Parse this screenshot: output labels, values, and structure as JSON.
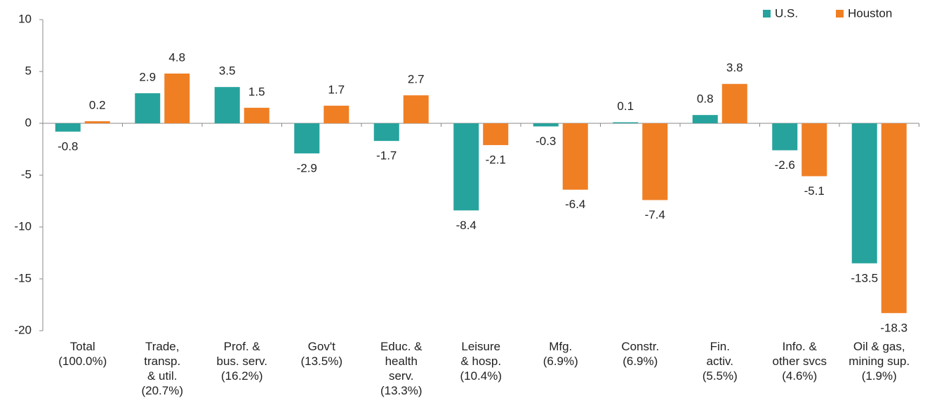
{
  "chart_data": {
    "type": "bar",
    "categories": [
      "Total\n(100.0%)",
      "Trade,\ntransp.\n& util.\n(20.7%)",
      "Prof. &\nbus. serv.\n(16.2%)",
      "Gov't\n(13.5%)",
      "Educ. &\nhealth\nserv.\n(13.3%)",
      "Leisure\n& hosp.\n(10.4%)",
      "Mfg.\n(6.9%)",
      "Constr.\n(6.9%)",
      "Fin.\nactiv.\n(5.5%)",
      "Info. &\nother svcs\n(4.6%)",
      "Oil & gas,\nmining sup.\n(1.9%)"
    ],
    "series": [
      {
        "name": "U.S.",
        "color": "#26a39d",
        "values": [
          -0.8,
          2.9,
          3.5,
          -2.9,
          -1.7,
          -8.4,
          -0.3,
          0.1,
          0.8,
          -2.6,
          -13.5
        ]
      },
      {
        "name": "Houston",
        "color": "#f07f24",
        "values": [
          0.2,
          4.8,
          1.5,
          1.7,
          2.7,
          -2.1,
          -6.4,
          -7.4,
          3.8,
          -5.1,
          -18.3
        ]
      }
    ],
    "ylim": [
      -20,
      10
    ],
    "yticks": [
      -20,
      -15,
      -10,
      -5,
      0,
      5,
      10
    ],
    "legend": "top-right"
  }
}
